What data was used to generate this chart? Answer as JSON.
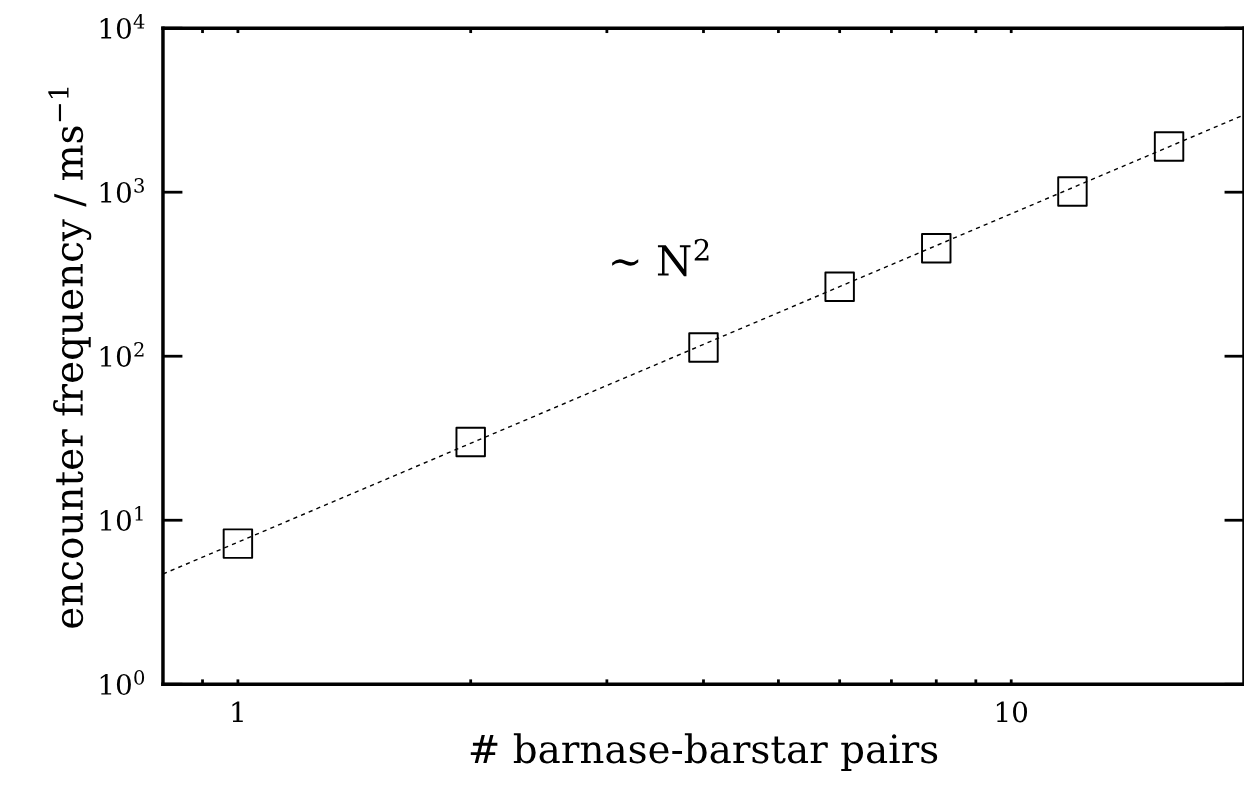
{
  "chart_data": {
    "type": "scatter",
    "xlabel": "# barnase-barstar pairs",
    "ylabel": "encounter frequency / ms$^{−1}$",
    "log": "xy",
    "xlim": [
      0.8,
      20
    ],
    "ylim": [
      1,
      10000
    ],
    "xticks": [
      {
        "value": 0.9,
        "label": null
      },
      1,
      {
        "value": 2,
        "label": null
      },
      {
        "value": 3,
        "label": null
      },
      {
        "value": 4,
        "label": null
      },
      {
        "value": 5,
        "label": null
      },
      {
        "value": 6,
        "label": null
      },
      {
        "value": 7,
        "label": null
      },
      {
        "value": 8,
        "label": null
      },
      {
        "value": 9,
        "label": null
      },
      10
    ],
    "yticks": [
      {
        "value": 1,
        "label": "10$^{0}$"
      },
      {
        "value": 10,
        "label": "10$^{1}$"
      },
      {
        "value": 100,
        "label": "10$^{2}$"
      },
      {
        "value": 1000,
        "label": "10$^{3}$"
      },
      {
        "value": 10000,
        "label": "10$^{4}$"
      }
    ],
    "grid": false,
    "legend": false,
    "series": [
      {
        "type": "line",
        "color": "#000000",
        "line_style": "dashed",
        "marker": "none",
        "x": [
          0.8,
          20
        ],
        "values": [
          4.7,
          2960
        ]
      },
      {
        "color": "#000000",
        "marker": "square",
        "x": [
          1,
          2,
          4,
          6,
          8,
          12,
          16
        ],
        "values": [
          7.2,
          30,
          113,
          265,
          455,
          1010,
          1900
        ]
      }
    ],
    "annotations": [
      "∼ N$^{2}$"
    ]
  }
}
